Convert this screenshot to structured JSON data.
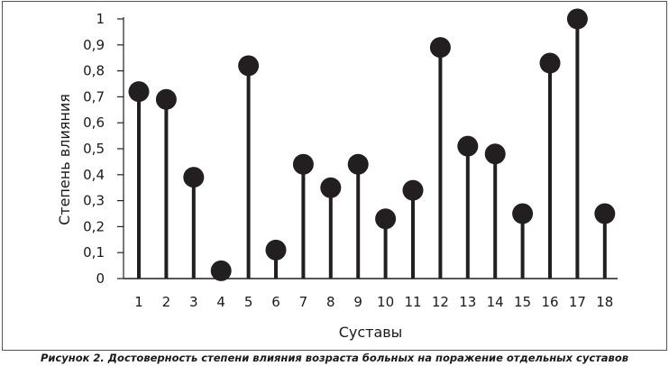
{
  "caption": "Рисунок 2. Достоверность степени влияния возраста больных на поражение отдельных суставов",
  "colors": {
    "marker": "#231f20",
    "axis": "#231f20",
    "text": "#1a1a1a"
  },
  "chart_data": {
    "type": "lollipop",
    "title": "",
    "xlabel": "Суставы",
    "ylabel": "Степень влияния",
    "ylim": [
      0,
      1
    ],
    "y_ticks": [
      "0",
      "0,1",
      "0,2",
      "0,3",
      "0,4",
      "0,5",
      "0,6",
      "0,7",
      "0,8",
      "0,9",
      "1"
    ],
    "y_tick_values": [
      0,
      0.1,
      0.2,
      0.3,
      0.4,
      0.5,
      0.6,
      0.7,
      0.8,
      0.9,
      1
    ],
    "categories": [
      "1",
      "2",
      "3",
      "4",
      "5",
      "6",
      "7",
      "8",
      "9",
      "10",
      "11",
      "12",
      "13",
      "14",
      "15",
      "16",
      "17",
      "18"
    ],
    "values": [
      0.72,
      0.69,
      0.39,
      0.03,
      0.82,
      0.11,
      0.44,
      0.35,
      0.44,
      0.23,
      0.34,
      0.89,
      0.51,
      0.48,
      0.25,
      0.83,
      1.0,
      0.25
    ],
    "grid": false,
    "legend": "none"
  }
}
